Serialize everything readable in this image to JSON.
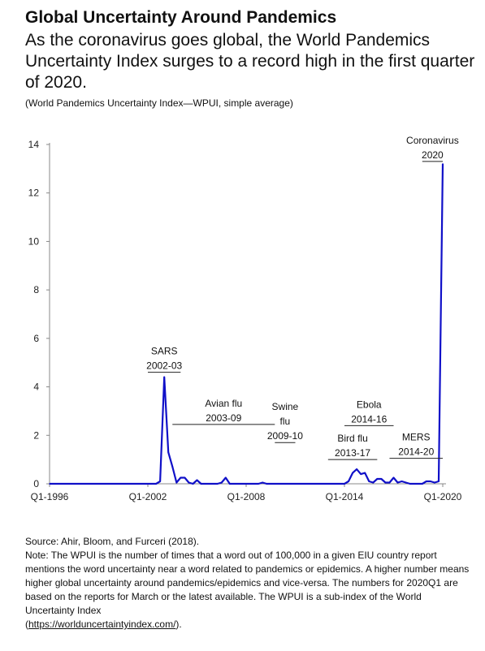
{
  "header": {
    "title": "Global Uncertainty Around Pandemics",
    "subtitle": "As the coronavirus goes global, the World Pandemics Uncertainty Index surges to a record high in the first quarter of 2020.",
    "units": "(World Pandemics Uncertainty Index—WPUI, simple average)"
  },
  "footer": {
    "source": "Source: Ahir, Bloom, and Furceri (2018).",
    "note_text": "Note:  The WPUI is the number of times that a word out of 100,000 in a given EIU country report mentions the word uncertainty near a word related to pandemics or epidemics. A higher number means higher global uncertainty around pandemics/epidemics and vice-versa. The numbers for 2020Q1 are based on the reports for March or the latest available. The WPUI is a sub-index of the World Uncertainty Index",
    "link_open": "(",
    "link": "https://worlduncertaintyindex.com/",
    "link_close": ")."
  },
  "chart_data": {
    "type": "line",
    "title": "",
    "xlabel": "",
    "ylabel": "",
    "ylim": [
      0,
      14
    ],
    "xlim": [
      "Q1-1996",
      "Q1-2020"
    ],
    "y_ticks": [
      "0",
      "2",
      "4",
      "6",
      "8",
      "10",
      "12",
      "14"
    ],
    "x_tick_labels": [
      "Q1-1996",
      "Q1-2002",
      "Q1-2008",
      "Q1-2014",
      "Q1-2020"
    ],
    "grid": false,
    "line_color": "#1010c8",
    "series": [
      {
        "values": [
          [
            "Q1-1996",
            0
          ],
          [
            "Q3-2002",
            0
          ],
          [
            "Q4-2002",
            0.1
          ],
          [
            "Q1-2003",
            4.4
          ],
          [
            "Q2-2003",
            1.3
          ],
          [
            "Q3-2003",
            0.7
          ],
          [
            "Q4-2003",
            0.05
          ],
          [
            "Q1-2004",
            0.25
          ],
          [
            "Q2-2004",
            0.25
          ],
          [
            "Q3-2004",
            0.05
          ],
          [
            "Q4-2004",
            0
          ],
          [
            "Q1-2005",
            0.15
          ],
          [
            "Q2-2005",
            0
          ],
          [
            "Q2-2006",
            0
          ],
          [
            "Q3-2006",
            0.05
          ],
          [
            "Q4-2006",
            0.25
          ],
          [
            "Q1-2007",
            0
          ],
          [
            "Q4-2008",
            0
          ],
          [
            "Q1-2009",
            0.05
          ],
          [
            "Q2-2009",
            0
          ],
          [
            "Q1-2014",
            0
          ],
          [
            "Q2-2014",
            0.1
          ],
          [
            "Q3-2014",
            0.45
          ],
          [
            "Q4-2014",
            0.6
          ],
          [
            "Q1-2015",
            0.4
          ],
          [
            "Q2-2015",
            0.45
          ],
          [
            "Q3-2015",
            0.1
          ],
          [
            "Q4-2015",
            0.05
          ],
          [
            "Q1-2016",
            0.2
          ],
          [
            "Q2-2016",
            0.2
          ],
          [
            "Q3-2016",
            0.05
          ],
          [
            "Q4-2016",
            0.05
          ],
          [
            "Q1-2017",
            0.25
          ],
          [
            "Q2-2017",
            0.05
          ],
          [
            "Q3-2017",
            0.1
          ],
          [
            "Q4-2017",
            0.05
          ],
          [
            "Q1-2018",
            0
          ],
          [
            "Q4-2018",
            0
          ],
          [
            "Q1-2019",
            0.1
          ],
          [
            "Q2-2019",
            0.1
          ],
          [
            "Q3-2019",
            0.05
          ],
          [
            "Q4-2019",
            0.1
          ],
          [
            "Q1-2020",
            13.2
          ]
        ]
      }
    ],
    "annotations": [
      {
        "lines": [
          "SARS",
          "2002-03"
        ],
        "x_from": "Q1-2002",
        "x_to": "Q1-2004",
        "y": 4.6
      },
      {
        "lines": [
          "Avian flu",
          "2003-09"
        ],
        "x_from": "Q3-2003",
        "x_to": "Q4-2009",
        "y": 2.45
      },
      {
        "lines": [
          "Swine",
          "flu",
          "2009-10"
        ],
        "x_from": "Q4-2009",
        "x_to": "Q1-2011",
        "y": 1.7
      },
      {
        "lines": [
          "Bird flu",
          "2013-17"
        ],
        "x_from": "Q1-2013",
        "x_to": "Q1-2016",
        "y": 1.0
      },
      {
        "lines": [
          "Ebola",
          "2014-16"
        ],
        "x_from": "Q1-2014",
        "x_to": "Q1-2017",
        "y": 2.4
      },
      {
        "lines": [
          "MERS",
          "2014-20"
        ],
        "x_from": "Q4-2016",
        "x_to": "Q1-2020",
        "y": 1.05
      },
      {
        "lines": [
          "Coronavirus",
          "2020"
        ],
        "x_from": "Q4-2018",
        "x_to": "Q1-2020",
        "y": 13.3
      }
    ]
  }
}
